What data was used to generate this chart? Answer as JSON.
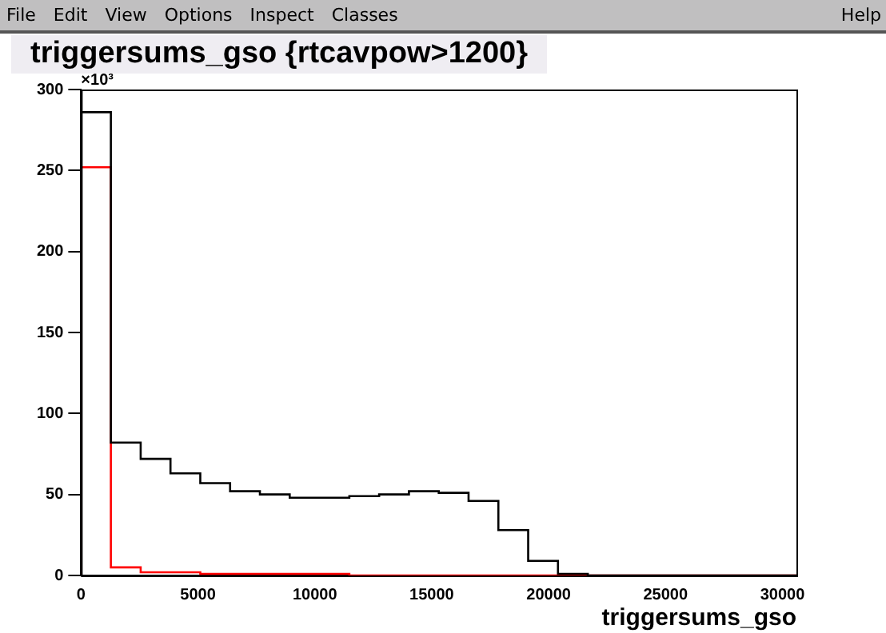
{
  "chart_data": {
    "type": "histogram",
    "title": "triggersums_gso {rtcavpow>1200}",
    "xlabel": "triggersums_gso",
    "ylabel": "×10³",
    "annotations": [
      "File",
      "Edit",
      "View",
      "Options",
      "Inspect",
      "Classes",
      "Help"
    ],
    "bins": [
      0,
      1275,
      2550,
      3825,
      5100,
      6375,
      7650,
      8925,
      10200,
      11475,
      12750,
      14025,
      15300,
      16575,
      17850,
      19125,
      20400,
      21675,
      22950,
      24225,
      25500,
      26775,
      28050,
      29325,
      30600
    ],
    "series": [
      {
        "color": "#000000",
        "values": [
          286,
          82,
          72,
          63,
          57,
          52,
          50,
          48,
          48,
          49,
          50,
          52,
          51,
          46,
          28,
          9,
          1,
          0,
          0,
          0,
          0,
          0,
          0,
          0
        ]
      },
      {
        "color": "#ff0000",
        "values": [
          252,
          5,
          2,
          2,
          1,
          1,
          1,
          1,
          1,
          0,
          0,
          0,
          0,
          0,
          0,
          0,
          0,
          0,
          0,
          0,
          0,
          0,
          0,
          0
        ]
      }
    ],
    "xlim": [
      0,
      30600
    ],
    "xticks": [
      0,
      5000,
      10000,
      15000,
      20000,
      25000,
      30000
    ],
    "ylim": [
      0,
      300
    ],
    "yticks": [
      0,
      50,
      100,
      150,
      200,
      250,
      300
    ],
    "grid": false,
    "legend": false
  }
}
